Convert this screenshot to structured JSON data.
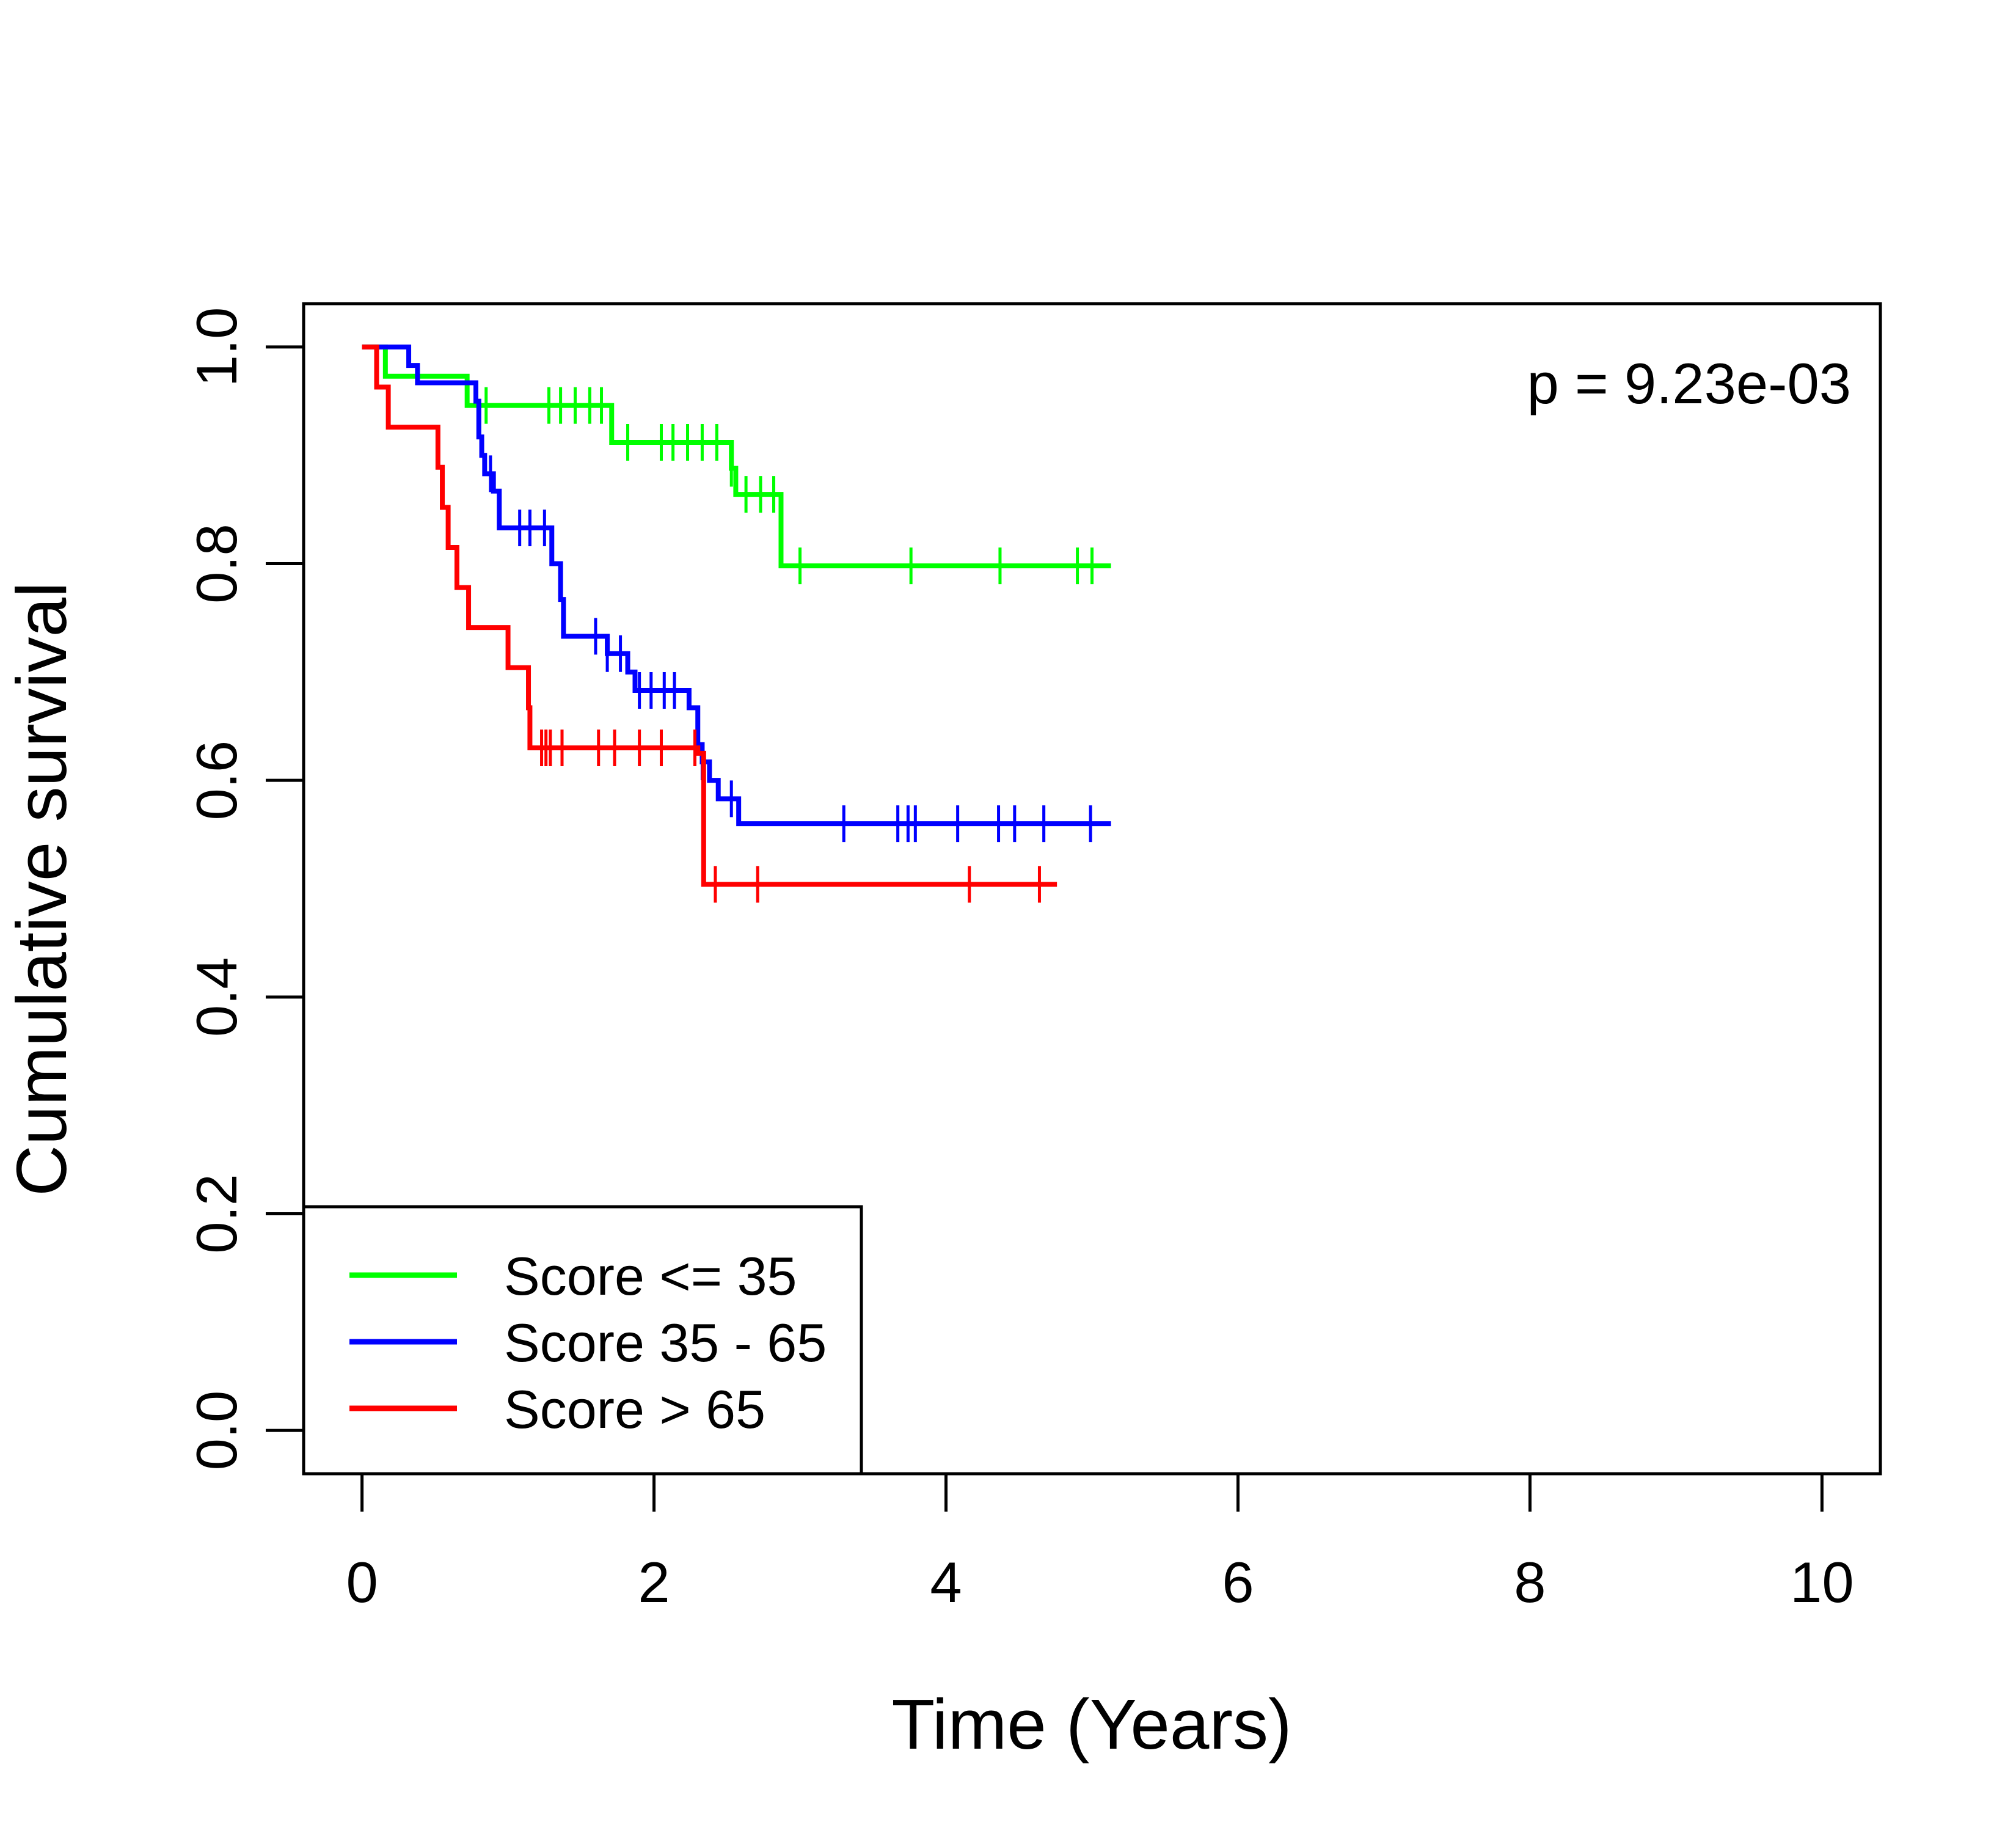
{
  "chart_data": {
    "type": "line",
    "subtype": "kaplan-meier step",
    "title": "",
    "xlabel": "Time (Years)",
    "ylabel": "Cumulative survival",
    "xlim": [
      -0.4,
      10.4
    ],
    "ylim": [
      -0.04,
      1.04
    ],
    "x_ticks": [
      0,
      2,
      4,
      6,
      8,
      10
    ],
    "x_tick_labels": [
      "0",
      "2",
      "4",
      "6",
      "8",
      "10"
    ],
    "y_ticks": [
      0.0,
      0.2,
      0.4,
      0.6,
      0.8,
      1.0
    ],
    "y_tick_labels": [
      "0.0",
      "0.2",
      "0.4",
      "0.6",
      "0.8",
      "1.0"
    ],
    "grid": false,
    "legend_position": "bottom-left",
    "annotation": "p = 9.23e-03",
    "series": [
      {
        "name": "Score <= 35",
        "color": "#00ff00",
        "steps": [
          [
            0,
            1.0
          ],
          [
            0.16,
            0.973
          ],
          [
            0.72,
            0.946
          ],
          [
            1.71,
            0.912
          ],
          [
            2.53,
            0.888
          ],
          [
            2.56,
            0.864
          ],
          [
            2.87,
            0.798
          ]
        ],
        "end_x": 5.13,
        "censor_x": [
          0.85,
          1.28,
          1.36,
          1.46,
          1.56,
          1.64,
          1.82,
          2.05,
          2.13,
          2.23,
          2.33,
          2.43,
          2.53,
          2.63,
          2.73,
          2.82,
          3.0,
          3.76,
          4.37,
          4.9,
          5.0
        ]
      },
      {
        "name": "Score 35 - 65",
        "color": "#0000ff",
        "steps": [
          [
            0,
            1.0
          ],
          [
            0.32,
            0.983
          ],
          [
            0.38,
            0.967
          ],
          [
            0.78,
            0.95
          ],
          [
            0.8,
            0.917
          ],
          [
            0.82,
            0.9
          ],
          [
            0.84,
            0.883
          ],
          [
            0.9,
            0.867
          ],
          [
            0.94,
            0.833
          ],
          [
            1.3,
            0.8
          ],
          [
            1.36,
            0.767
          ],
          [
            1.38,
            0.733
          ],
          [
            1.68,
            0.717
          ],
          [
            1.82,
            0.7
          ],
          [
            1.87,
            0.683
          ],
          [
            2.24,
            0.667
          ],
          [
            2.3,
            0.633
          ],
          [
            2.33,
            0.617
          ],
          [
            2.38,
            0.6
          ],
          [
            2.44,
            0.583
          ],
          [
            2.58,
            0.56
          ]
        ],
        "end_x": 5.13,
        "censor_x": [
          0.88,
          1.08,
          1.15,
          1.25,
          1.6,
          1.68,
          1.77,
          1.9,
          1.98,
          2.07,
          2.14,
          2.33,
          2.53,
          3.3,
          3.67,
          3.74,
          3.79,
          4.08,
          4.36,
          4.47,
          4.67,
          4.99
        ]
      },
      {
        "name": "Score > 65",
        "color": "#ff0000",
        "steps": [
          [
            0,
            1.0
          ],
          [
            0.1,
            0.963
          ],
          [
            0.18,
            0.926
          ],
          [
            0.52,
            0.889
          ],
          [
            0.55,
            0.852
          ],
          [
            0.59,
            0.815
          ],
          [
            0.65,
            0.778
          ],
          [
            0.73,
            0.741
          ],
          [
            1.0,
            0.704
          ],
          [
            1.14,
            0.667
          ],
          [
            1.15,
            0.63
          ],
          [
            2.3,
            0.625
          ],
          [
            2.34,
            0.504
          ]
        ],
        "end_x": 4.76,
        "censor_x": [
          1.23,
          1.26,
          1.29,
          1.37,
          1.62,
          1.73,
          1.9,
          2.05,
          2.28,
          2.42,
          2.71,
          4.16,
          4.64
        ]
      }
    ]
  }
}
